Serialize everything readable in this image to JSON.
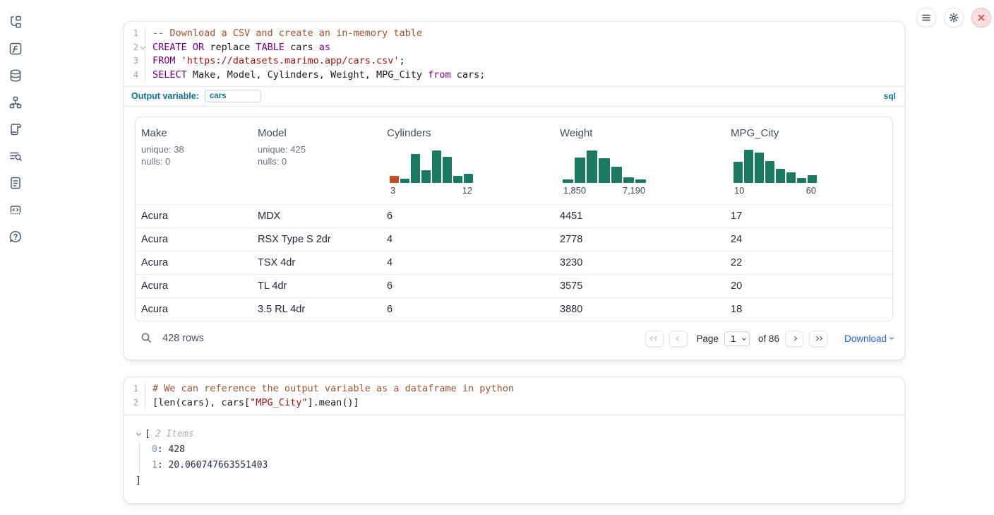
{
  "theme": {
    "hist_teal": "#1a7a60",
    "hist_orange": "#c44e1d",
    "accent_blue": "#0e749b",
    "link_blue": "#2563eb"
  },
  "sidebar": {
    "icons": [
      "file-explorer",
      "functions",
      "data-sources",
      "dependency-graph",
      "scratchpad",
      "logs",
      "documentation",
      "snippets",
      "help"
    ]
  },
  "topbar": {
    "buttons": [
      "menu",
      "settings",
      "shutdown"
    ]
  },
  "sql_cell": {
    "lines": [
      {
        "num": "1",
        "tokens": [
          {
            "t": "com",
            "v": "-- Download a CSV and create an in-memory table"
          }
        ]
      },
      {
        "num": "2",
        "fold": true,
        "tokens": [
          {
            "t": "kw",
            "v": "CREATE"
          },
          {
            "t": "plain",
            "v": " "
          },
          {
            "t": "kw",
            "v": "OR"
          },
          {
            "t": "plain",
            "v": " replace "
          },
          {
            "t": "kw",
            "v": "TABLE"
          },
          {
            "t": "plain",
            "v": " cars "
          },
          {
            "t": "kw",
            "v": "as"
          }
        ]
      },
      {
        "num": "3",
        "tokens": [
          {
            "t": "kw",
            "v": "FROM"
          },
          {
            "t": "plain",
            "v": " "
          },
          {
            "t": "str",
            "v": "'https://datasets.marimo.app/cars.csv'"
          },
          {
            "t": "plain",
            "v": ";"
          }
        ]
      },
      {
        "num": "4",
        "tokens": [
          {
            "t": "kw",
            "v": "SELECT"
          },
          {
            "t": "plain",
            "v": " Make, Model, Cylinders, Weight, MPG_City "
          },
          {
            "t": "kw",
            "v": "from"
          },
          {
            "t": "plain",
            "v": " cars;"
          }
        ]
      }
    ],
    "output_variable_label": "Output variable:",
    "output_variable_value": "cars",
    "language_badge": "sql"
  },
  "table": {
    "columns": [
      {
        "name": "Make",
        "stats": {
          "unique": "unique: 38",
          "nulls": "nulls: 0"
        }
      },
      {
        "name": "Model",
        "stats": {
          "unique": "unique: 425",
          "nulls": "nulls: 0"
        }
      },
      {
        "name": "Cylinders",
        "histogram": {
          "min_label": "3",
          "max_label": "12",
          "bars": [
            {
              "h": 0.2,
              "c": "#c44e1d"
            },
            {
              "h": 0.12
            },
            {
              "h": 0.84
            },
            {
              "h": 0.37
            },
            {
              "h": 0.93
            },
            {
              "h": 0.76
            },
            {
              "h": 0.2
            },
            {
              "h": 0.26
            }
          ]
        }
      },
      {
        "name": "Weight",
        "histogram": {
          "min_label": "1,850",
          "max_label": "7,190",
          "bars": [
            {
              "h": 0.1
            },
            {
              "h": 0.74
            },
            {
              "h": 0.93
            },
            {
              "h": 0.71
            },
            {
              "h": 0.47
            },
            {
              "h": 0.16
            },
            {
              "h": 0.1
            }
          ]
        }
      },
      {
        "name": "MPG_City",
        "histogram": {
          "min_label": "10",
          "max_label": "60",
          "bars": [
            {
              "h": 0.61
            },
            {
              "h": 0.95
            },
            {
              "h": 0.87
            },
            {
              "h": 0.64
            },
            {
              "h": 0.41
            },
            {
              "h": 0.31
            },
            {
              "h": 0.14
            },
            {
              "h": 0.22
            }
          ]
        }
      }
    ],
    "rows": [
      [
        "Acura",
        "MDX",
        "6",
        "4451",
        "17"
      ],
      [
        "Acura",
        "RSX Type S 2dr",
        "4",
        "2778",
        "24"
      ],
      [
        "Acura",
        "TSX 4dr",
        "4",
        "3230",
        "22"
      ],
      [
        "Acura",
        "TL 4dr",
        "6",
        "3575",
        "20"
      ],
      [
        "Acura",
        "3.5 RL 4dr",
        "6",
        "3880",
        "18"
      ]
    ],
    "footer": {
      "row_count": "428 rows",
      "page_label": "Page",
      "page_value": "1",
      "of_label": "of 86",
      "download_label": "Download"
    }
  },
  "python_cell": {
    "lines": [
      {
        "num": "1",
        "tokens": [
          {
            "t": "com",
            "v": "# We can reference the output variable as a dataframe in python"
          }
        ]
      },
      {
        "num": "2",
        "tokens": [
          {
            "t": "plain",
            "v": "[len(cars), cars["
          },
          {
            "t": "str",
            "v": "\"MPG_City\""
          },
          {
            "t": "plain",
            "v": "].mean()]"
          }
        ]
      }
    ]
  },
  "py_output": {
    "bracket_open": "[",
    "items_label": "2 Items",
    "entries": [
      {
        "key": "0",
        "value": "428"
      },
      {
        "key": "1",
        "value": "20.060747663551403"
      }
    ],
    "bracket_close": "]"
  }
}
